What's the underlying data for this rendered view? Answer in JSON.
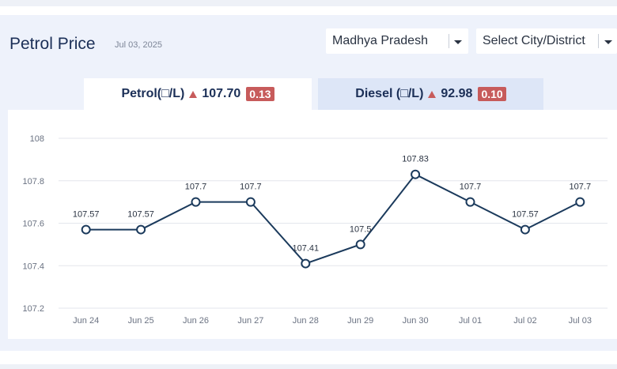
{
  "header": {
    "title": "Petrol Price",
    "date": "Jul 03, 2025"
  },
  "filters": {
    "state": "Madhya Pradesh",
    "city": "Select City/District"
  },
  "tabs": [
    {
      "label": "Petrol(□/L)",
      "value": "107.70",
      "change": "0.13",
      "active": true
    },
    {
      "label": "Diesel (□/L)",
      "value": "92.98",
      "change": "0.10",
      "active": false
    }
  ],
  "colors": {
    "line": "#1b3a5c",
    "up": "#c75b5b",
    "panel": "#eef2fb"
  },
  "chart_data": {
    "type": "line",
    "categories": [
      "Jun 24",
      "Jun 25",
      "Jun 26",
      "Jun 27",
      "Jun 28",
      "Jun 29",
      "Jun 30",
      "Jul 01",
      "Jul 02",
      "Jul 03"
    ],
    "values": [
      107.57,
      107.57,
      107.7,
      107.7,
      107.41,
      107.5,
      107.83,
      107.7,
      107.57,
      107.7
    ],
    "data_labels": [
      "107.57",
      "107.57",
      "107.7",
      "107.7",
      "107.41",
      "107.5",
      "107.83",
      "107.7",
      "107.57",
      "107.7"
    ],
    "yticks": [
      "107.2",
      "107.4",
      "107.6",
      "107.8",
      "108"
    ],
    "ylim": [
      107.2,
      108
    ],
    "grid": true,
    "title": "",
    "xlabel": "",
    "ylabel": ""
  }
}
